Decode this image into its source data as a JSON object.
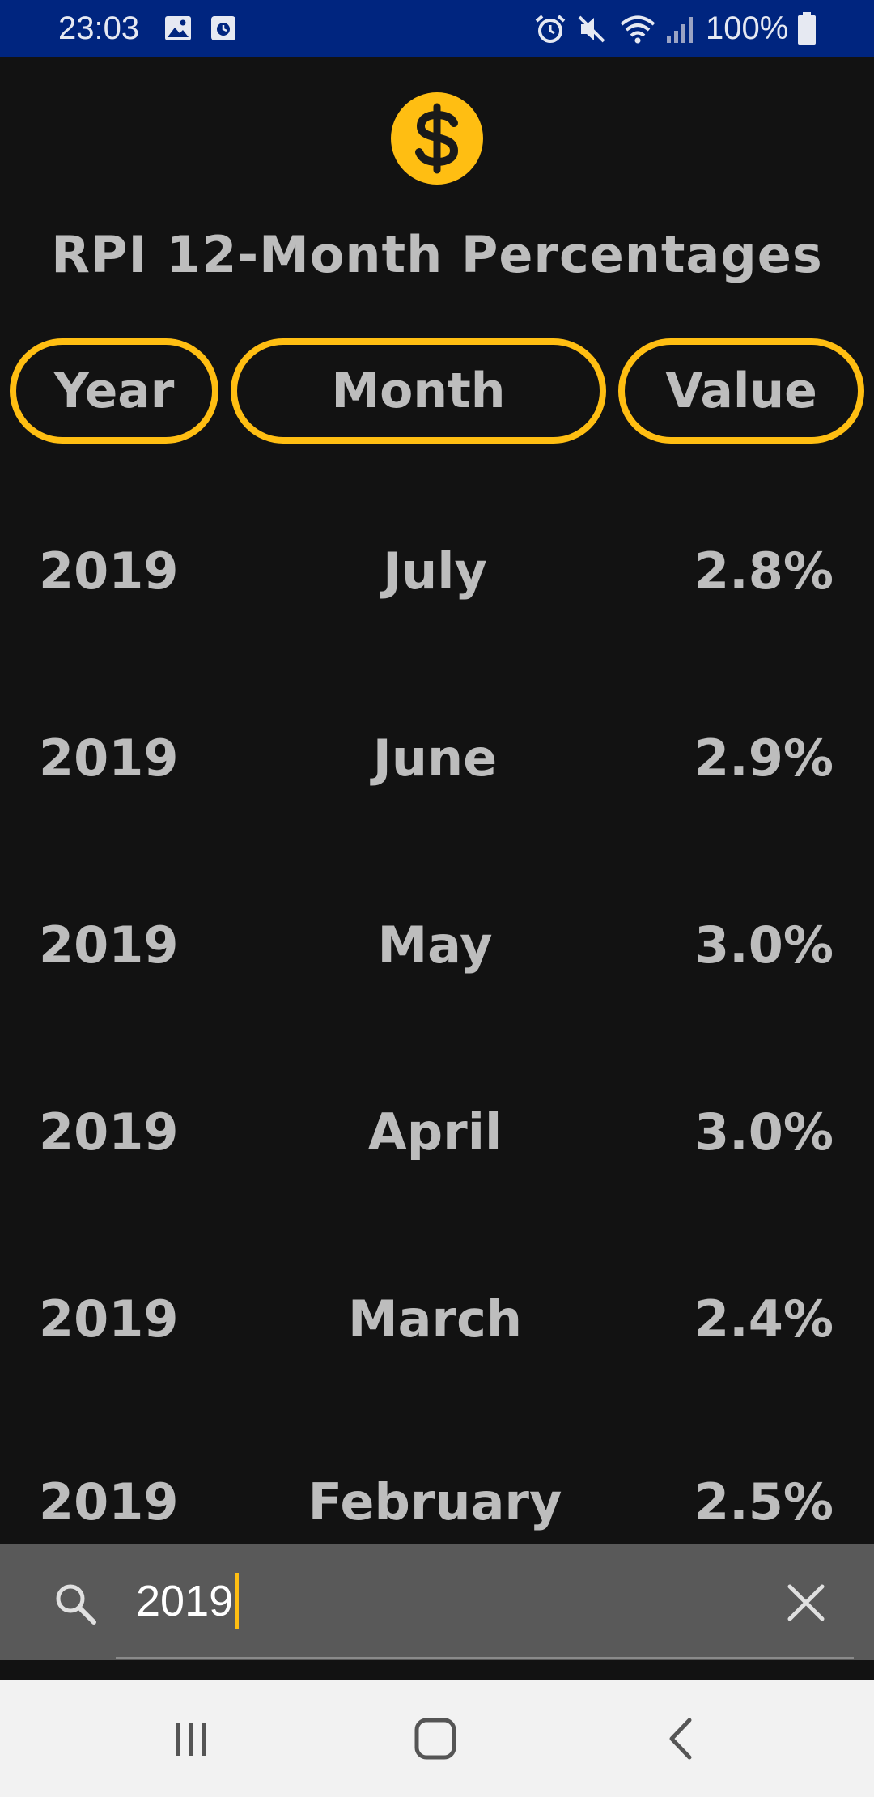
{
  "status_bar": {
    "time": "23:03",
    "battery": "100%",
    "icons": [
      "image-icon",
      "calendar-icon",
      "alarm-icon",
      "mute-icon",
      "wifi-icon",
      "signal-icon",
      "battery-icon"
    ]
  },
  "app": {
    "logo_icon": "dollar-icon",
    "title": "RPI 12-Month Percentages",
    "accent_color": "#ffbe12"
  },
  "header": {
    "year": "Year",
    "month": "Month",
    "value": "Value"
  },
  "rows": [
    {
      "year": "2019",
      "month": "July",
      "value": "2.8%"
    },
    {
      "year": "2019",
      "month": "June",
      "value": "2.9%"
    },
    {
      "year": "2019",
      "month": "May",
      "value": "3.0%"
    },
    {
      "year": "2019",
      "month": "April",
      "value": "3.0%"
    },
    {
      "year": "2019",
      "month": "March",
      "value": "2.4%"
    },
    {
      "year": "2019",
      "month": "February",
      "value": "2.5%"
    }
  ],
  "search": {
    "value": "2019",
    "icon": "search-icon",
    "clear_icon": "close-icon"
  },
  "nav_bar": {
    "buttons": [
      "recent-apps-icon",
      "home-icon",
      "back-icon"
    ]
  }
}
